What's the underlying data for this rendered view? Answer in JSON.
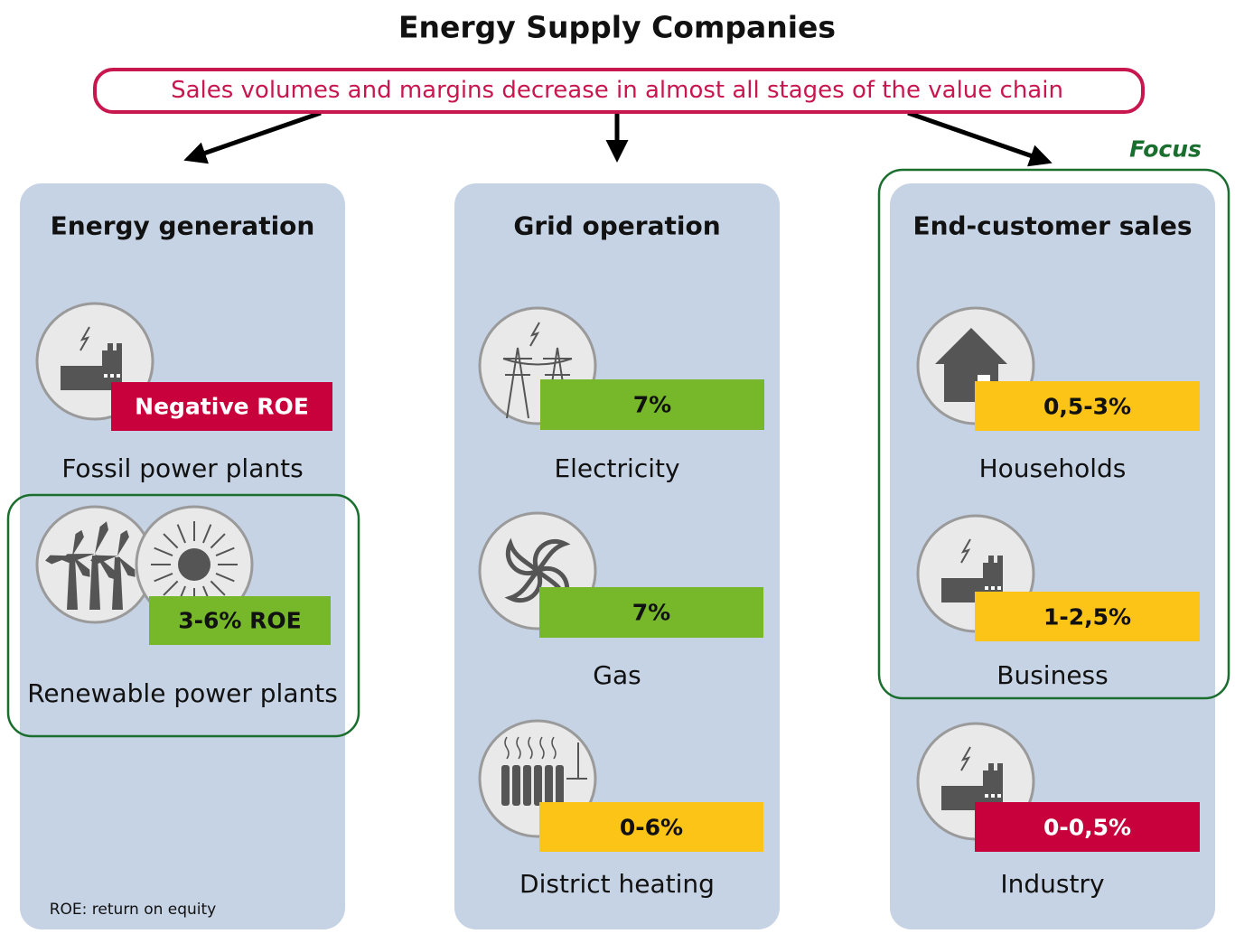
{
  "title": "Energy Supply Companies",
  "subtitle": "Sales volumes and margins decrease in almost all stages of the value chain",
  "focus_label": "Focus",
  "columns": [
    {
      "title": "Energy generation",
      "items": [
        {
          "label": "Fossil power plants",
          "badge": "Negative ROE",
          "badge_color": "#c8003c"
        },
        {
          "label": "Renewable power plants",
          "badge": "3-6% ROE",
          "badge_color": "#76b82a"
        }
      ]
    },
    {
      "title": "Grid operation",
      "items": [
        {
          "label": "Electricity",
          "badge": "7%",
          "badge_color": "#76b82a"
        },
        {
          "label": "Gas",
          "badge": "7%",
          "badge_color": "#76b82a"
        },
        {
          "label": "District heating",
          "badge": "0-6%",
          "badge_color": "#fdc418"
        }
      ]
    },
    {
      "title": "End-customer sales",
      "items": [
        {
          "label": "Households",
          "badge": "0,5-3%",
          "badge_color": "#fdc418"
        },
        {
          "label": "Business",
          "badge": "1-2,5%",
          "badge_color": "#fdc418"
        },
        {
          "label": "Industry",
          "badge": "0-0,5%",
          "badge_color": "#c8003c"
        }
      ]
    }
  ],
  "footnote": "ROE: return on equity"
}
